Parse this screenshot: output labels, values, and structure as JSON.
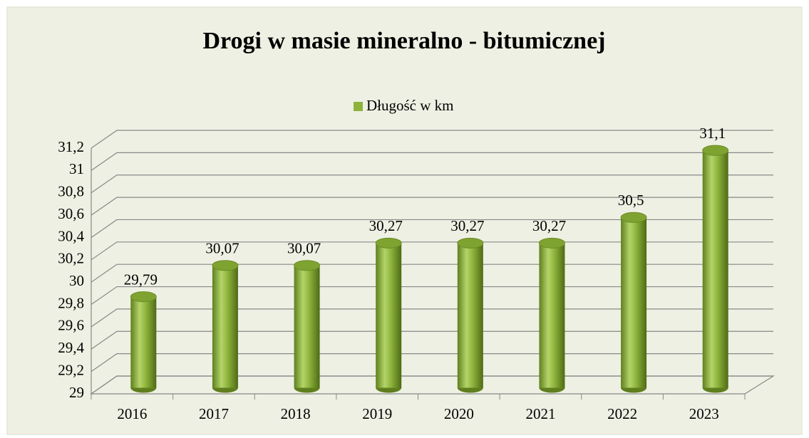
{
  "chart_data": {
    "type": "bar",
    "title": "Drogi w masie mineralno - bitumicznej",
    "categories": [
      "2016",
      "2017",
      "2018",
      "2019",
      "2020",
      "2021",
      "2022",
      "2023"
    ],
    "series": [
      {
        "name": "Długość w km",
        "color": "#8db33a",
        "values": [
          29.79,
          30.07,
          30.07,
          30.27,
          30.27,
          30.27,
          30.5,
          31.1
        ],
        "value_labels": [
          "29,79",
          "30,07",
          "30,07",
          "30,27",
          "30,27",
          "30,27",
          "30,5",
          "31,1"
        ]
      }
    ],
    "ylim": [
      29,
      31.2
    ],
    "yticks": [
      29,
      {
        "value": 29.2,
        "label": "29,2"
      },
      {
        "value": 29.4,
        "label": "29,4"
      },
      {
        "value": 29.6,
        "label": "29,6"
      },
      {
        "value": 29.8,
        "label": "29,8"
      },
      30,
      {
        "value": 30.2,
        "label": "30,2"
      },
      {
        "value": 30.4,
        "label": "30,4"
      },
      {
        "value": 30.6,
        "label": "30,6"
      },
      {
        "value": 30.8,
        "label": "30,8"
      },
      31,
      {
        "value": 31.2,
        "label": "31,2"
      }
    ],
    "grid": true,
    "legend": "top"
  }
}
